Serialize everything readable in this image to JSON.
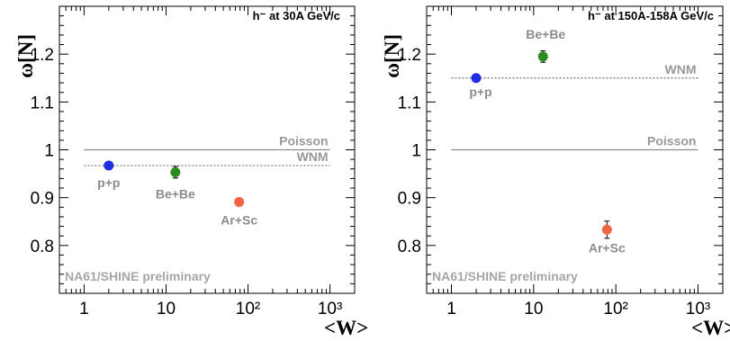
{
  "chart_data": [
    {
      "type": "scatter",
      "title": "h⁻ at 30A GeV/c",
      "xlabel": "<W>",
      "ylabel": "ω[N]",
      "xscale": "log",
      "xlim": [
        0.5,
        2000
      ],
      "ylim": [
        0.7,
        1.3
      ],
      "x_ticks": [
        "1",
        "10",
        "10²",
        "10³"
      ],
      "y_ticks": [
        "0.8",
        "0.9",
        "1",
        "1.1",
        "1.2"
      ],
      "grid": false,
      "legend": "none",
      "points": [
        {
          "label": "p+p",
          "x": 2.0,
          "y": 0.967,
          "err": 0.004,
          "color": "#1f2ee6"
        },
        {
          "label": "Be+Be",
          "x": 13.0,
          "y": 0.953,
          "err": 0.012,
          "color": "#2a8c1f"
        },
        {
          "label": "Ar+Sc",
          "x": 78.0,
          "y": 0.891,
          "err": 0.008,
          "color": "#f26445"
        }
      ],
      "reference_lines": [
        {
          "label": "Poisson",
          "y": 1.0,
          "style": "solid"
        },
        {
          "label": "WNM",
          "y": 0.967,
          "style": "dotted"
        }
      ],
      "annotation": "NA61/SHINE preliminary"
    },
    {
      "type": "scatter",
      "title": "h⁻ at 150A-158A GeV/c",
      "xlabel": "<W>",
      "ylabel": "ω[N]",
      "xscale": "log",
      "xlim": [
        0.5,
        2000
      ],
      "ylim": [
        0.7,
        1.3
      ],
      "x_ticks": [
        "1",
        "10",
        "10²",
        "10³"
      ],
      "y_ticks": [
        "0.8",
        "0.9",
        "1",
        "1.1",
        "1.2"
      ],
      "grid": false,
      "legend": "none",
      "points": [
        {
          "label": "p+p",
          "x": 2.0,
          "y": 1.15,
          "err": 0.005,
          "color": "#1f2ee6"
        },
        {
          "label": "Be+Be",
          "x": 13.0,
          "y": 1.195,
          "err": 0.012,
          "color": "#2a8c1f"
        },
        {
          "label": "Ar+Sc",
          "x": 78.0,
          "y": 0.833,
          "err": 0.018,
          "color": "#f26445"
        }
      ],
      "reference_lines": [
        {
          "label": "Poisson",
          "y": 1.0,
          "style": "solid"
        },
        {
          "label": "WNM",
          "y": 1.15,
          "style": "dotted"
        }
      ],
      "annotation": "NA61/SHINE preliminary"
    }
  ]
}
